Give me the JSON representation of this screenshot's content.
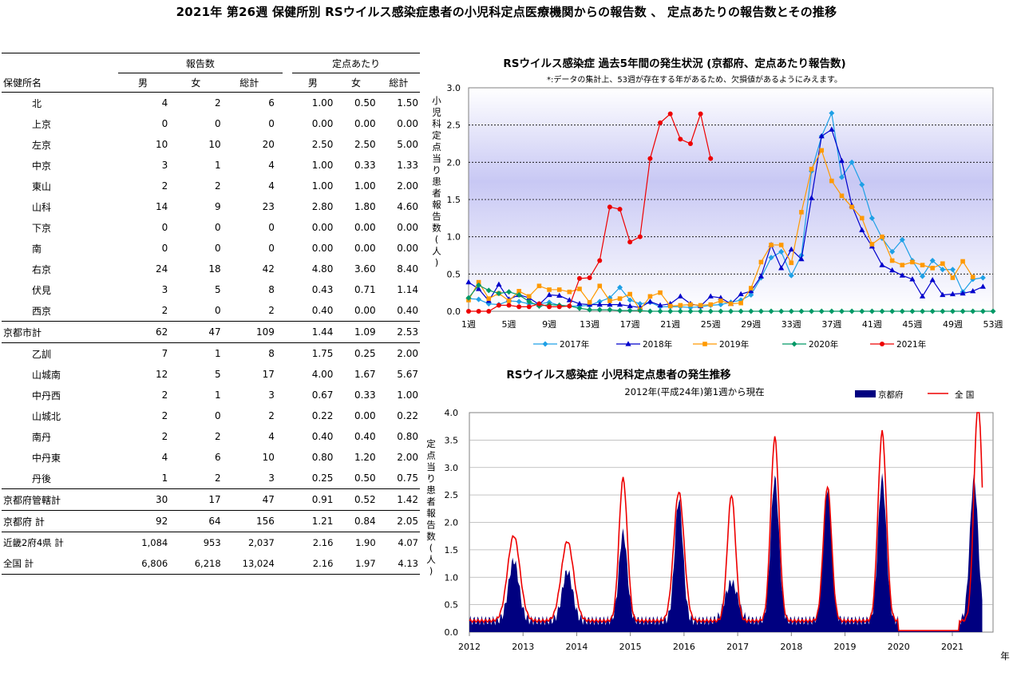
{
  "page": {
    "title": "2021年 第26週 保健所別 RSウイルス感染症患者の小児科定点医療機関からの報告数 、 定点あたりの報告数とその推移"
  },
  "table": {
    "group_headers": [
      "報告数",
      "定点あたり"
    ],
    "col_headers": [
      "保健所名",
      "男",
      "女",
      "総計",
      "男",
      "女",
      "総計"
    ],
    "rows": [
      {
        "name": "北",
        "v": [
          "4",
          "2",
          "6",
          "1.00",
          "0.50",
          "1.50"
        ],
        "indent": true
      },
      {
        "name": "上京",
        "v": [
          "0",
          "0",
          "0",
          "0.00",
          "0.00",
          "0.00"
        ],
        "indent": true
      },
      {
        "name": "左京",
        "v": [
          "10",
          "10",
          "20",
          "2.50",
          "2.50",
          "5.00"
        ],
        "indent": true
      },
      {
        "name": "中京",
        "v": [
          "3",
          "1",
          "4",
          "1.00",
          "0.33",
          "1.33"
        ],
        "indent": true
      },
      {
        "name": "東山",
        "v": [
          "2",
          "2",
          "4",
          "1.00",
          "1.00",
          "2.00"
        ],
        "indent": true
      },
      {
        "name": "山科",
        "v": [
          "14",
          "9",
          "23",
          "2.80",
          "1.80",
          "4.60"
        ],
        "indent": true
      },
      {
        "name": "下京",
        "v": [
          "0",
          "0",
          "0",
          "0.00",
          "0.00",
          "0.00"
        ],
        "indent": true
      },
      {
        "name": "南",
        "v": [
          "0",
          "0",
          "0",
          "0.00",
          "0.00",
          "0.00"
        ],
        "indent": true
      },
      {
        "name": "右京",
        "v": [
          "24",
          "18",
          "42",
          "4.80",
          "3.60",
          "8.40"
        ],
        "indent": true
      },
      {
        "name": "伏見",
        "v": [
          "3",
          "5",
          "8",
          "0.43",
          "0.71",
          "1.14"
        ],
        "indent": true
      },
      {
        "name": "西京",
        "v": [
          "2",
          "0",
          "2",
          "0.40",
          "0.00",
          "0.40"
        ],
        "indent": true
      },
      {
        "name": "京都市計",
        "v": [
          "62",
          "47",
          "109",
          "1.44",
          "1.09",
          "2.53"
        ],
        "indent": false,
        "rule": true
      },
      {
        "name": "乙訓",
        "v": [
          "7",
          "1",
          "8",
          "1.75",
          "0.25",
          "2.00"
        ],
        "indent": true
      },
      {
        "name": "山城南",
        "v": [
          "12",
          "5",
          "17",
          "4.00",
          "1.67",
          "5.67"
        ],
        "indent": true
      },
      {
        "name": "中丹西",
        "v": [
          "2",
          "1",
          "3",
          "0.67",
          "0.33",
          "1.00"
        ],
        "indent": true
      },
      {
        "name": "山城北",
        "v": [
          "2",
          "0",
          "2",
          "0.22",
          "0.00",
          "0.22"
        ],
        "indent": true
      },
      {
        "name": "南丹",
        "v": [
          "2",
          "2",
          "4",
          "0.40",
          "0.40",
          "0.80"
        ],
        "indent": true
      },
      {
        "name": "中丹東",
        "v": [
          "4",
          "6",
          "10",
          "0.80",
          "1.20",
          "2.00"
        ],
        "indent": true
      },
      {
        "name": "丹後",
        "v": [
          "1",
          "2",
          "3",
          "0.25",
          "0.50",
          "0.75"
        ],
        "indent": true
      },
      {
        "name": "京都府管轄計",
        "v": [
          "30",
          "17",
          "47",
          "0.91",
          "0.52",
          "1.42"
        ],
        "indent": false,
        "rule": true
      },
      {
        "name": "京都府 計",
        "v": [
          "92",
          "64",
          "156",
          "1.21",
          "0.84",
          "2.05"
        ],
        "indent": false,
        "rule": true
      },
      {
        "name": "近畿2府4県 計",
        "v": [
          "1,084",
          "953",
          "2,037",
          "2.16",
          "1.90",
          "4.07"
        ],
        "indent": false,
        "small": true
      },
      {
        "name": "全国 計",
        "v": [
          "6,806",
          "6,218",
          "13,024",
          "2.16",
          "1.97",
          "4.13"
        ],
        "indent": false,
        "small": true,
        "last": true
      }
    ]
  },
  "chart_data": [
    {
      "type": "line",
      "title": "RSウイルス感染症 過去5年間の発生状況 (京都府、定点あたり報告数)",
      "subtitle": "*:データの集計上、53週が存在する年があるため、欠損値があるようにみえます。",
      "ylabel": "小児科定点当り患者報告数(人)",
      "ylim": [
        0,
        3.0
      ],
      "yticks": [
        "0.0",
        "0.5",
        "1.0",
        "1.5",
        "2.0",
        "2.5",
        "3.0"
      ],
      "xticks": [
        "1週",
        "5週",
        "9週",
        "13週",
        "17週",
        "21週",
        "25週",
        "29週",
        "33週",
        "37週",
        "41週",
        "45週",
        "49週",
        "53週"
      ],
      "x_range": [
        1,
        53
      ],
      "legend_position": "bottom",
      "grid": true,
      "series": [
        {
          "name": "2017年",
          "color": "#1ea0e6",
          "marker": "diamond",
          "values": [
            0.17,
            0.16,
            0.1,
            0.09,
            0.14,
            0.13,
            0.1,
            0.1,
            0.12,
            0.08,
            0.07,
            0.07,
            0.08,
            0.13,
            0.18,
            0.32,
            0.15,
            0.1,
            0.12,
            0.06,
            0.06,
            0.06,
            0.05,
            0.06,
            0.08,
            0.09,
            0.12,
            0.15,
            0.22,
            0.45,
            0.72,
            0.8,
            0.48,
            0.75,
            1.88,
            2.35,
            2.66,
            1.8,
            2.0,
            1.7,
            1.25,
            0.98,
            0.8,
            0.96,
            0.68,
            0.47,
            0.68,
            0.56,
            0.56,
            0.26,
            0.43,
            0.45
          ]
        },
        {
          "name": "2018年",
          "color": "#0000cc",
          "marker": "triangle",
          "values": [
            0.39,
            0.3,
            0.14,
            0.36,
            0.16,
            0.22,
            0.18,
            0.09,
            0.22,
            0.21,
            0.15,
            0.1,
            0.09,
            0.09,
            0.09,
            0.09,
            0.07,
            0.05,
            0.13,
            0.08,
            0.1,
            0.2,
            0.1,
            0.07,
            0.2,
            0.18,
            0.1,
            0.23,
            0.27,
            0.47,
            0.89,
            0.58,
            0.83,
            0.7,
            1.52,
            2.35,
            2.44,
            2.02,
            1.42,
            1.09,
            0.87,
            0.62,
            0.55,
            0.48,
            0.43,
            0.2,
            0.42,
            0.22,
            0.23,
            0.24,
            0.27,
            0.33
          ]
        },
        {
          "name": "2019年",
          "color": "#ff9900",
          "marker": "square",
          "values": [
            0.15,
            0.39,
            0.17,
            0.24,
            0.14,
            0.27,
            0.2,
            0.34,
            0.29,
            0.29,
            0.26,
            0.3,
            0.12,
            0.34,
            0.14,
            0.17,
            0.23,
            0.02,
            0.2,
            0.25,
            0.07,
            0.08,
            0.09,
            0.08,
            0.09,
            0.14,
            0.1,
            0.11,
            0.31,
            0.66,
            0.89,
            0.89,
            0.65,
            1.33,
            1.91,
            2.16,
            1.75,
            1.55,
            1.4,
            1.25,
            0.9,
            1.0,
            0.68,
            0.62,
            0.66,
            0.62,
            0.58,
            0.64,
            0.45,
            0.67,
            0.46
          ]
        },
        {
          "name": "2020年",
          "color": "#009966",
          "marker": "diamond",
          "values": [
            0.18,
            0.35,
            0.28,
            0.24,
            0.26,
            0.22,
            0.13,
            0.07,
            0.09,
            0.08,
            0.07,
            0.04,
            0.02,
            0.02,
            0.02,
            0.01,
            0.01,
            0.01,
            0.0,
            0.0,
            0.0,
            0.0,
            0.0,
            0.0,
            0.0,
            0.0,
            0.0,
            0.0,
            0.0,
            0.0,
            0.0,
            0.0,
            0.0,
            0.0,
            0.0,
            0.0,
            0.0,
            0.0,
            0.0,
            0.0,
            0.0,
            0.0,
            0.0,
            0.0,
            0.0,
            0.0,
            0.0,
            0.0,
            0.0,
            0.0,
            0.0,
            0.0,
            0.0
          ]
        },
        {
          "name": "2021年",
          "color": "#ee0000",
          "marker": "circle",
          "values": [
            0.0,
            0.0,
            0.0,
            0.08,
            0.08,
            0.06,
            0.06,
            0.1,
            0.06,
            0.06,
            0.07,
            0.44,
            0.45,
            0.68,
            1.4,
            1.37,
            0.93,
            1.0,
            2.05,
            2.53,
            2.65,
            2.31,
            2.25,
            2.65,
            2.05
          ]
        }
      ]
    },
    {
      "type": "area",
      "title": "RSウイルス感染症 小児科定点患者の発生推移",
      "subtitle": "2012年(平成24年)第1週から現在",
      "ylabel": "定点当り患者報告数(人)",
      "xlabel": "年",
      "ylim": [
        0,
        4.0
      ],
      "yticks": [
        "0.0",
        "0.5",
        "1.0",
        "1.5",
        "2.0",
        "2.5",
        "3.0",
        "3.5",
        "4.0"
      ],
      "xticks": [
        "2012",
        "2013",
        "2014",
        "2015",
        "2016",
        "2017",
        "2018",
        "2019",
        "2020",
        "2021"
      ],
      "legend_position": "top-right",
      "grid": true,
      "series": [
        {
          "name": "京都府",
          "color": "#000080",
          "peaks": [
            {
              "year": 2012,
              "week": 44,
              "height": 1.1,
              "width": 5
            },
            {
              "year": 2013,
              "week": 44,
              "height": 0.9,
              "width": 5
            },
            {
              "year": 2014,
              "week": 46,
              "height": 1.6,
              "width": 4
            },
            {
              "year": 2015,
              "week": 48,
              "height": 2.2,
              "width": 4
            },
            {
              "year": 2016,
              "week": 47,
              "height": 0.7,
              "width": 6
            },
            {
              "year": 2017,
              "week": 37,
              "height": 2.6,
              "width": 4
            },
            {
              "year": 2018,
              "week": 36,
              "height": 2.4,
              "width": 4
            },
            {
              "year": 2019,
              "week": 37,
              "height": 2.6,
              "width": 4
            },
            {
              "year": 2021,
              "week": 22,
              "height": 2.6,
              "width": 4
            }
          ]
        },
        {
          "name": "全 国",
          "color": "#ee0000",
          "peaks": [
            {
              "year": 2012,
              "week": 44,
              "height": 1.55,
              "width": 6
            },
            {
              "year": 2013,
              "week": 44,
              "height": 1.45,
              "width": 6
            },
            {
              "year": 2014,
              "week": 46,
              "height": 2.6,
              "width": 4
            },
            {
              "year": 2015,
              "week": 48,
              "height": 2.35,
              "width": 5
            },
            {
              "year": 2016,
              "week": 47,
              "height": 2.3,
              "width": 4
            },
            {
              "year": 2017,
              "week": 37,
              "height": 3.35,
              "width": 4
            },
            {
              "year": 2018,
              "week": 36,
              "height": 2.45,
              "width": 4
            },
            {
              "year": 2019,
              "week": 37,
              "height": 3.45,
              "width": 4
            },
            {
              "year": 2021,
              "week": 26,
              "height": 4.0,
              "width": 4
            }
          ]
        }
      ]
    }
  ]
}
